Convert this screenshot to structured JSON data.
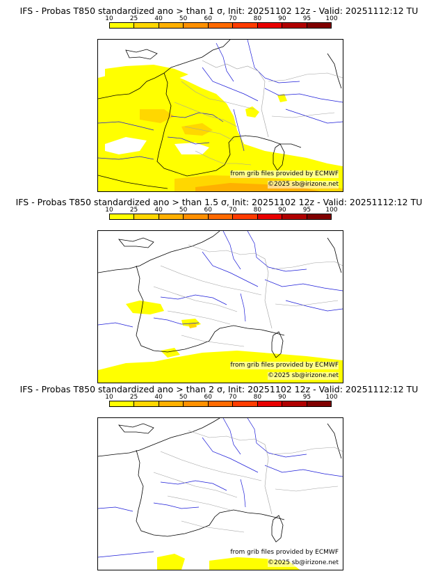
{
  "colorbar": {
    "ticks": [
      "10",
      "25",
      "40",
      "50",
      "60",
      "70",
      "80",
      "90",
      "95",
      "100"
    ],
    "colors": [
      "#ffff00",
      "#ffd700",
      "#ffb000",
      "#ff9000",
      "#ff6a00",
      "#ff3c00",
      "#e80000",
      "#b00000",
      "#800000"
    ]
  },
  "colors": {
    "coast": "#000000",
    "rivers": "#1a1ad8",
    "borders": "#a0a0a0",
    "prob_low": "#ffff00",
    "prob_mid": "#ffd700",
    "prob_high": "#ffb000"
  },
  "panels": [
    {
      "title": "IFS - Probas T850  standardized ano > than 1 σ, Init: 20251102 12z - Valid: 20251112:12 TU"
    },
    {
      "title": "IFS - Probas T850  standardized ano > than 1.5 σ, Init: 20251102 12z - Valid: 20251112:12 TU"
    },
    {
      "title": "IFS - Probas T850  standardized ano > than 2 σ, Init: 20251102 12z - Valid: 20251112:12 TU"
    }
  ],
  "credits": {
    "source": "from grib files provided by ECMWF",
    "copyright": "©2025 sb@irizone.net"
  }
}
